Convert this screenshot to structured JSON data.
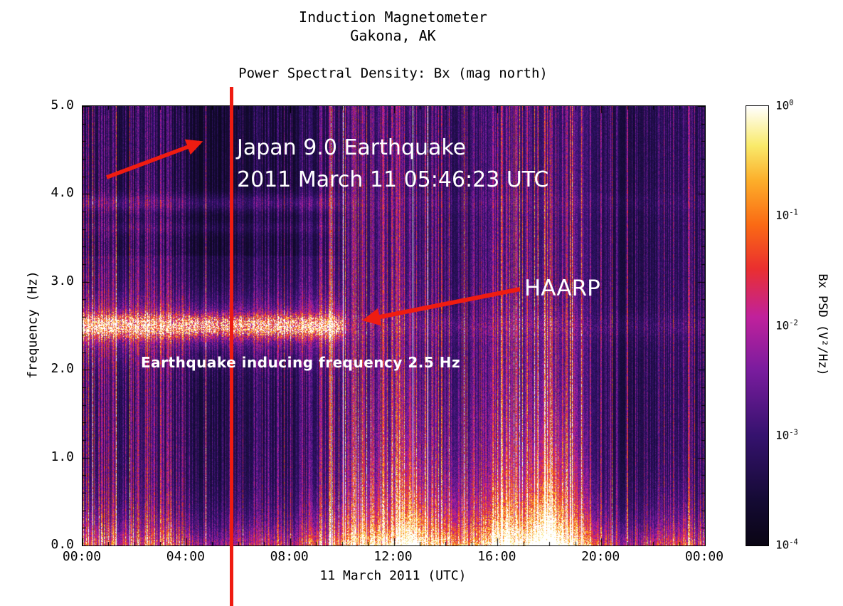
{
  "chart_data": {
    "type": "heatmap",
    "instrument": "Induction Magnetometer",
    "station": "Gakona, AK",
    "title": "Power Spectral Density: Bx (mag north)",
    "xlabel": "11 March 2011 (UTC)",
    "ylabel": "frequency (Hz)",
    "x_ticks": [
      "00:00",
      "04:00",
      "08:00",
      "12:00",
      "16:00",
      "20:00",
      "00:00"
    ],
    "x_range_hours": [
      0,
      24
    ],
    "y_ticks": [
      "5.0",
      "4.0",
      "3.0",
      "2.0",
      "1.0",
      "0.0"
    ],
    "y_range_hz": [
      0,
      5
    ],
    "grid": false,
    "colorbar": {
      "label": "Bx PSD (V²/Hz)",
      "scale": "log",
      "range": [
        0.0001,
        1
      ],
      "tick_labels": [
        "10⁰",
        "10⁻¹",
        "10⁻²",
        "10⁻³",
        "10⁻⁴"
      ],
      "tick_exponents": [
        0,
        -1,
        -2,
        -3,
        -4
      ],
      "colormap_stops": [
        {
          "v": 0.0,
          "color": "#0a0514"
        },
        {
          "v": 0.1,
          "color": "#140a33"
        },
        {
          "v": 0.25,
          "color": "#35126e"
        },
        {
          "v": 0.4,
          "color": "#7a1c9e"
        },
        {
          "v": 0.52,
          "color": "#c0219c"
        },
        {
          "v": 0.63,
          "color": "#ea2f2f"
        },
        {
          "v": 0.73,
          "color": "#fa6a14"
        },
        {
          "v": 0.83,
          "color": "#fcae2a"
        },
        {
          "v": 0.91,
          "color": "#f9ea6a"
        },
        {
          "v": 1.0,
          "color": "#ffffff"
        }
      ]
    },
    "annotations": {
      "event_line1": "Japan 9.0 Earthquake",
      "event_line2": "2011 March 11 05:46:23 UTC",
      "haarp": "HAARP",
      "band": "Earthquake inducing frequency 2.5 Hz"
    },
    "features": {
      "event_time_hour": 5.77,
      "event_line_color": "#ef1c11",
      "arrow_color": "#ef1c11",
      "persistent_band_hz": 2.5,
      "band_end_hour": 10.0,
      "secondary_band_hz": 3.9,
      "high_activity_hours": [
        10.0,
        19.6
      ],
      "bright_blob_hours": [
        12.6,
        16.3,
        17.9
      ]
    }
  }
}
